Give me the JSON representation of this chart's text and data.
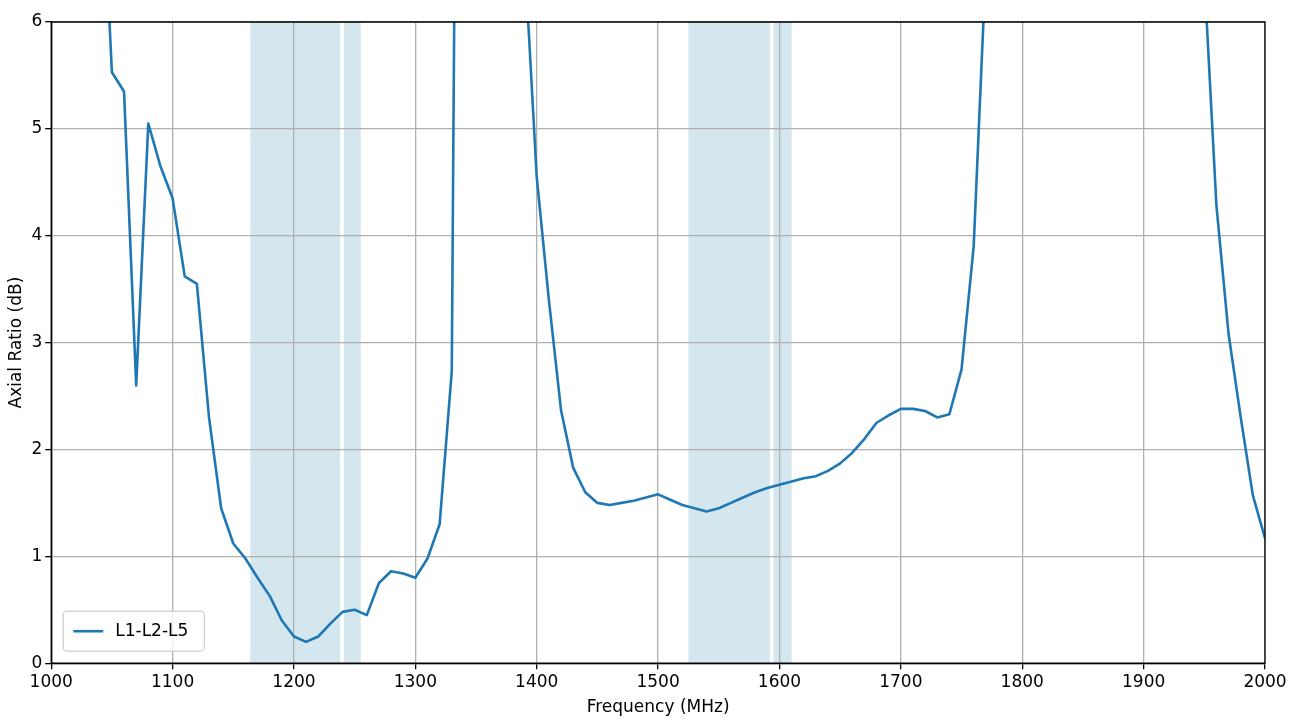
{
  "chart_data": {
    "type": "line",
    "xlabel": "Frequency (MHz)",
    "ylabel": "Axial Ratio (dB)",
    "xlim": [
      1000,
      2000
    ],
    "xticks": [
      1000,
      1100,
      1200,
      1300,
      1400,
      1500,
      1600,
      1700,
      1800,
      1900,
      2000
    ],
    "ylim": [
      0,
      6
    ],
    "yticks": [
      0,
      1,
      2,
      3,
      4,
      5,
      6
    ],
    "grid": true,
    "legend": "bottom left",
    "line_style": "solid",
    "bands": [
      {
        "axis": "x",
        "from": 1164,
        "to": 1238,
        "color": "#d4e7ee"
      },
      {
        "axis": "x",
        "from": 1241,
        "to": 1255,
        "color": "#d4e7ee"
      },
      {
        "axis": "x",
        "from": 1525,
        "to": 1592,
        "color": "#d4e7ee"
      },
      {
        "axis": "x",
        "from": 1595,
        "to": 1610,
        "color": "#d4e7ee"
      }
    ],
    "series": [
      {
        "name": "L1-L2-L5",
        "color": "#1f77b4",
        "x": [
          1048,
          1050,
          1060,
          1070,
          1080,
          1090,
          1100,
          1110,
          1120,
          1130,
          1140,
          1150,
          1160,
          1170,
          1180,
          1190,
          1200,
          1210,
          1220,
          1230,
          1240,
          1250,
          1260,
          1270,
          1280,
          1290,
          1300,
          1310,
          1320,
          1330,
          1332,
          1360,
          1393,
          1400,
          1410,
          1420,
          1430,
          1440,
          1450,
          1460,
          1470,
          1480,
          1490,
          1500,
          1510,
          1520,
          1530,
          1540,
          1550,
          1560,
          1570,
          1580,
          1590,
          1600,
          1610,
          1620,
          1630,
          1640,
          1650,
          1660,
          1670,
          1680,
          1690,
          1700,
          1710,
          1720,
          1730,
          1740,
          1750,
          1760,
          1768,
          1860,
          1952,
          1960,
          1970,
          1980,
          1990,
          2000
        ],
        "values": [
          6,
          5.53,
          5.35,
          2.6,
          5.05,
          4.65,
          4.35,
          3.62,
          3.55,
          2.3,
          1.45,
          1.12,
          0.98,
          0.8,
          0.63,
          0.4,
          0.25,
          0.2,
          0.25,
          0.37,
          0.48,
          0.5,
          0.45,
          0.75,
          0.86,
          0.84,
          0.8,
          0.98,
          1.3,
          2.73,
          6,
          null,
          6,
          4.55,
          3.4,
          2.37,
          1.83,
          1.6,
          1.5,
          1.48,
          1.5,
          1.52,
          1.55,
          1.58,
          1.53,
          1.48,
          1.45,
          1.42,
          1.45,
          1.5,
          1.55,
          1.6,
          1.64,
          1.67,
          1.7,
          1.73,
          1.75,
          1.8,
          1.87,
          1.97,
          2.1,
          2.25,
          2.32,
          2.38,
          2.38,
          2.36,
          2.3,
          2.33,
          2.75,
          3.9,
          6,
          null,
          6,
          4.28,
          3.08,
          2.3,
          1.57,
          1.17
        ]
      }
    ]
  }
}
